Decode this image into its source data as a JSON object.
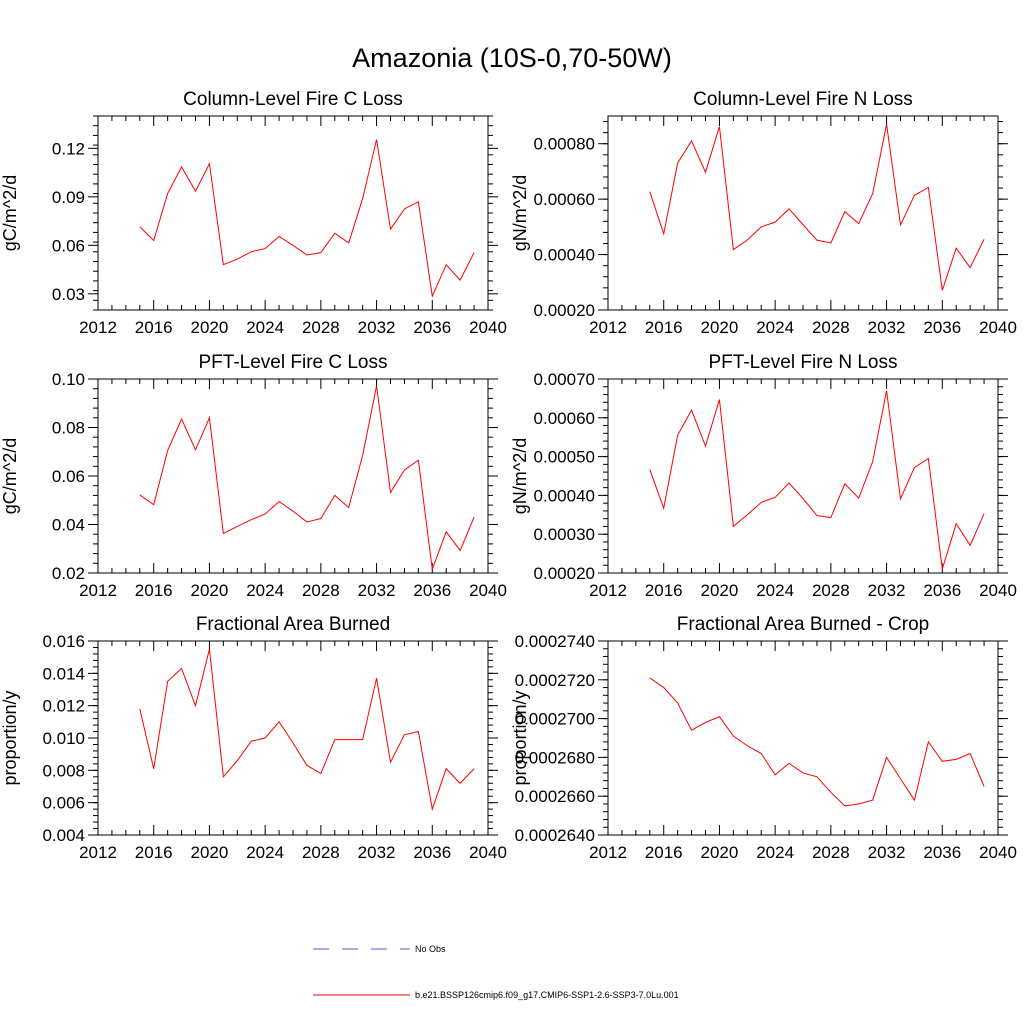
{
  "title": "Amazonia (10S-0,70-50W)",
  "colors": {
    "series": "#ff0000",
    "obs": "#5555cc",
    "axis": "#000000"
  },
  "legend": {
    "obs_label": "No Obs",
    "series_label": "b.e21.BSSP126cmip6.f09_g17.CMIP6-SSP1-2.6-SSP3-7.0Lu.001"
  },
  "chart_data": [
    {
      "type": "line",
      "title": "Column-Level Fire C Loss",
      "ylabel": "gC/m^2/d",
      "xlim": [
        2012,
        2040
      ],
      "ylim": [
        0.02,
        0.14
      ],
      "xticks": [
        2012,
        2016,
        2020,
        2024,
        2028,
        2032,
        2036,
        2040
      ],
      "xtick_labels": [
        "2012",
        "2016",
        "2020",
        "2024",
        "2028",
        "2032",
        "2036",
        "2040"
      ],
      "yticks": [
        0.03,
        0.06,
        0.09,
        0.12
      ],
      "ytick_labels": [
        "0.03",
        "0.06",
        "0.09",
        "0.12"
      ],
      "x": [
        2015,
        2016,
        2017,
        2018,
        2019,
        2020,
        2021,
        2022,
        2023,
        2024,
        2025,
        2026,
        2027,
        2028,
        2029,
        2030,
        2031,
        2032,
        2033,
        2034,
        2035,
        2036,
        2037,
        2038,
        2039
      ],
      "series": [
        {
          "name": "b.e21.BSSP126cmip6.f09_g17.CMIP6-SSP1-2.6-SSP3-7.0Lu.001",
          "values": [
            0.0715,
            0.063,
            0.092,
            0.1085,
            0.0935,
            0.1105,
            0.048,
            0.0515,
            0.056,
            0.058,
            0.0655,
            0.06,
            0.054,
            0.0555,
            0.0675,
            0.0615,
            0.089,
            0.1255,
            0.07,
            0.0825,
            0.087,
            0.0285,
            0.048,
            0.0385,
            0.0555
          ]
        }
      ]
    },
    {
      "type": "line",
      "title": "Column-Level Fire N Loss",
      "ylabel": "gN/m^2/d",
      "xlim": [
        2012,
        2040
      ],
      "ylim": [
        0.0002,
        0.0009
      ],
      "xticks": [
        2012,
        2016,
        2020,
        2024,
        2028,
        2032,
        2036,
        2040
      ],
      "xtick_labels": [
        "2012",
        "2016",
        "2020",
        "2024",
        "2028",
        "2032",
        "2036",
        "2040"
      ],
      "yticks": [
        0.0002,
        0.0004,
        0.0006,
        0.0008
      ],
      "ytick_labels": [
        "0.00020",
        "0.00040",
        "0.00060",
        "0.00080"
      ],
      "x": [
        2015,
        2016,
        2017,
        2018,
        2019,
        2020,
        2021,
        2022,
        2023,
        2024,
        2025,
        2026,
        2027,
        2028,
        2029,
        2030,
        2031,
        2032,
        2033,
        2034,
        2035,
        2036,
        2037,
        2038,
        2039
      ],
      "series": [
        {
          "name": "b.e21.BSSP126cmip6.f09_g17.CMIP6-SSP1-2.6-SSP3-7.0Lu.001",
          "values": [
            0.000627,
            0.000475,
            0.00073,
            0.00081,
            0.000697,
            0.000862,
            0.000418,
            0.000452,
            0.0005,
            0.000517,
            0.000565,
            0.000508,
            0.000452,
            0.000442,
            0.000555,
            0.000512,
            0.00062,
            0.00087,
            0.000507,
            0.000614,
            0.000642,
            0.000271,
            0.000423,
            0.000353,
            0.000455
          ]
        }
      ]
    },
    {
      "type": "line",
      "title": "PFT-Level Fire C Loss",
      "ylabel": "gC/m^2/d",
      "xlim": [
        2012,
        2040
      ],
      "ylim": [
        0.02,
        0.1
      ],
      "xticks": [
        2012,
        2016,
        2020,
        2024,
        2028,
        2032,
        2036,
        2040
      ],
      "xtick_labels": [
        "2012",
        "2016",
        "2020",
        "2024",
        "2028",
        "2032",
        "2036",
        "2040"
      ],
      "yticks": [
        0.02,
        0.04,
        0.06,
        0.08,
        0.1
      ],
      "ytick_labels": [
        "0.02",
        "0.04",
        "0.06",
        "0.08",
        "0.10"
      ],
      "x": [
        2015,
        2016,
        2017,
        2018,
        2019,
        2020,
        2021,
        2022,
        2023,
        2024,
        2025,
        2026,
        2027,
        2028,
        2029,
        2030,
        2031,
        2032,
        2033,
        2034,
        2035,
        2036,
        2037,
        2038,
        2039
      ],
      "series": [
        {
          "name": "b.e21.BSSP126cmip6.f09_g17.CMIP6-SSP1-2.6-SSP3-7.0Lu.001",
          "values": [
            0.0522,
            0.0482,
            0.0705,
            0.0835,
            0.0708,
            0.084,
            0.0363,
            0.0392,
            0.042,
            0.0443,
            0.0495,
            0.0455,
            0.041,
            0.0425,
            0.052,
            0.047,
            0.0685,
            0.0972,
            0.0532,
            0.0625,
            0.0665,
            0.0215,
            0.037,
            0.0293,
            0.043
          ]
        }
      ]
    },
    {
      "type": "line",
      "title": "PFT-Level Fire N Loss",
      "ylabel": "gN/m^2/d",
      "xlim": [
        2012,
        2040
      ],
      "ylim": [
        0.0002,
        0.0007
      ],
      "xticks": [
        2012,
        2016,
        2020,
        2024,
        2028,
        2032,
        2036,
        2040
      ],
      "xtick_labels": [
        "2012",
        "2016",
        "2020",
        "2024",
        "2028",
        "2032",
        "2036",
        "2040"
      ],
      "yticks": [
        0.0002,
        0.0003,
        0.0004,
        0.0005,
        0.0006,
        0.0007
      ],
      "ytick_labels": [
        "0.00020",
        "0.00030",
        "0.00040",
        "0.00050",
        "0.00060",
        "0.00070"
      ],
      "x": [
        2015,
        2016,
        2017,
        2018,
        2019,
        2020,
        2021,
        2022,
        2023,
        2024,
        2025,
        2026,
        2027,
        2028,
        2029,
        2030,
        2031,
        2032,
        2033,
        2034,
        2035,
        2036,
        2037,
        2038,
        2039
      ],
      "series": [
        {
          "name": "b.e21.BSSP126cmip6.f09_g17.CMIP6-SSP1-2.6-SSP3-7.0Lu.001",
          "values": [
            0.000467,
            0.000367,
            0.000555,
            0.00062,
            0.000527,
            0.000647,
            0.00032,
            0.00035,
            0.000382,
            0.000395,
            0.000432,
            0.000392,
            0.000348,
            0.000343,
            0.00043,
            0.000393,
            0.000487,
            0.00067,
            0.000391,
            0.000472,
            0.000495,
            0.00021,
            0.000327,
            0.000271,
            0.000353
          ]
        }
      ]
    },
    {
      "type": "line",
      "title": "Fractional Area Burned",
      "ylabel": "proportion/y",
      "xlim": [
        2012,
        2040
      ],
      "ylim": [
        0.004,
        0.016
      ],
      "xticks": [
        2012,
        2016,
        2020,
        2024,
        2028,
        2032,
        2036,
        2040
      ],
      "xtick_labels": [
        "2012",
        "2016",
        "2020",
        "2024",
        "2028",
        "2032",
        "2036",
        "2040"
      ],
      "yticks": [
        0.004,
        0.006,
        0.008,
        0.01,
        0.012,
        0.014,
        0.016
      ],
      "ytick_labels": [
        "0.004",
        "0.006",
        "0.008",
        "0.010",
        "0.012",
        "0.014",
        "0.016"
      ],
      "x": [
        2015,
        2016,
        2017,
        2018,
        2019,
        2020,
        2021,
        2022,
        2023,
        2024,
        2025,
        2026,
        2027,
        2028,
        2029,
        2030,
        2031,
        2032,
        2033,
        2034,
        2035,
        2036,
        2037,
        2038,
        2039
      ],
      "series": [
        {
          "name": "b.e21.BSSP126cmip6.f09_g17.CMIP6-SSP1-2.6-SSP3-7.0Lu.001",
          "values": [
            0.0118,
            0.0081,
            0.0135,
            0.0143,
            0.012,
            0.0155,
            0.0076,
            0.0086,
            0.0098,
            0.01,
            0.011,
            0.0097,
            0.0083,
            0.0078,
            0.0099,
            0.0099,
            0.0099,
            0.0137,
            0.0085,
            0.0102,
            0.0104,
            0.0056,
            0.0081,
            0.0072,
            0.0081
          ]
        }
      ]
    },
    {
      "type": "line",
      "title": "Fractional Area Burned - Crop",
      "ylabel": "proportion/y",
      "xlim": [
        2012,
        2040
      ],
      "ylim": [
        0.000264,
        0.000274
      ],
      "xticks": [
        2012,
        2016,
        2020,
        2024,
        2028,
        2032,
        2036,
        2040
      ],
      "xtick_labels": [
        "2012",
        "2016",
        "2020",
        "2024",
        "2028",
        "2032",
        "2036",
        "2040"
      ],
      "yticks": [
        0.000264,
        0.000266,
        0.000268,
        0.00027,
        0.000272,
        0.000274
      ],
      "ytick_labels": [
        "0.0002640",
        "0.0002660",
        "0.0002680",
        "0.0002700",
        "0.0002720",
        "0.0002740"
      ],
      "x": [
        2015,
        2016,
        2017,
        2018,
        2019,
        2020,
        2021,
        2022,
        2023,
        2024,
        2025,
        2026,
        2027,
        2028,
        2029,
        2030,
        2031,
        2032,
        2033,
        2034,
        2035,
        2036,
        2037,
        2038,
        2039
      ],
      "series": [
        {
          "name": "b.e21.BSSP126cmip6.f09_g17.CMIP6-SSP1-2.6-SSP3-7.0Lu.001",
          "values": [
            0.0002721,
            0.0002716,
            0.0002708,
            0.0002694,
            0.0002698,
            0.0002701,
            0.0002691,
            0.0002686,
            0.0002682,
            0.0002671,
            0.0002677,
            0.0002672,
            0.000267,
            0.0002662,
            0.0002655,
            0.0002656,
            0.0002658,
            0.000268,
            0.0002669,
            0.0002658,
            0.0002688,
            0.0002678,
            0.0002679,
            0.0002682,
            0.0002665
          ]
        }
      ]
    }
  ]
}
